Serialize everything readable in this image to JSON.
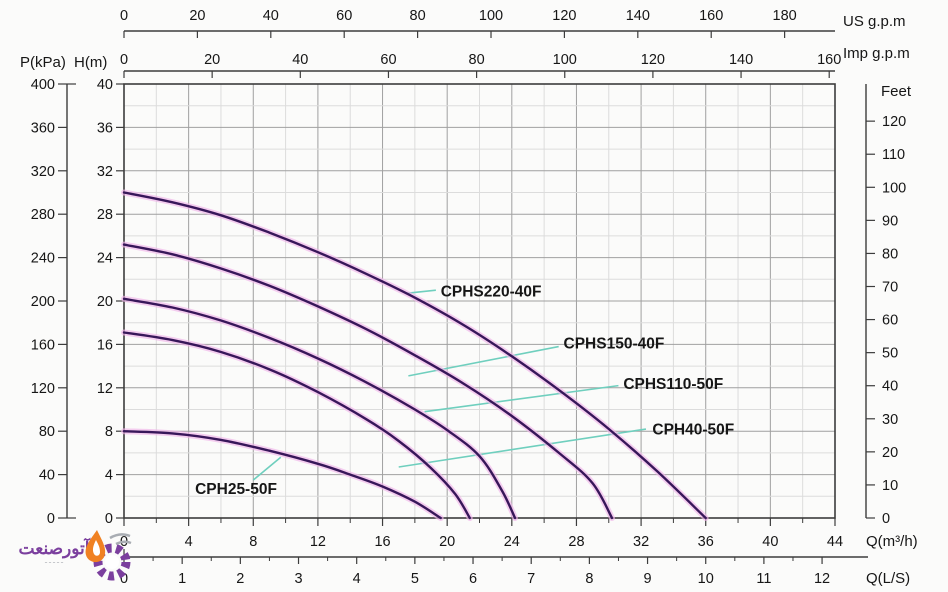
{
  "watermark": {
    "title": "آتورصنعت",
    "subtitle": "ـ ـ ـ ـ ـ",
    "icon": "flame-gear-logo",
    "title_color": "#7b3f9e",
    "flame_color": "#f08122",
    "gear_color": "#7b3f9e"
  },
  "chart_data": {
    "type": "line",
    "title": "",
    "description": "Pump head-capacity performance curves",
    "xlim_m3h": [
      0,
      44
    ],
    "ylim_m": [
      0,
      40
    ],
    "grid": "on",
    "colors": {
      "curve": "#38175a",
      "curve_glow": "#efb4ea",
      "leader": "#6fcfbe",
      "grid_minor": "#dcdcdc",
      "grid_major": "#a0a0a0",
      "frame": "#3c3c3c",
      "text": "#161616"
    },
    "axes": {
      "us": {
        "title": "US g.p.m",
        "ticks": [
          0,
          20,
          40,
          60,
          80,
          100,
          120,
          140,
          160,
          180
        ]
      },
      "imp": {
        "title": "Imp g.p.m",
        "ticks": [
          0,
          20,
          40,
          60,
          80,
          100,
          120,
          140,
          160
        ]
      },
      "p": {
        "title": "P(kPa)",
        "ticks": [
          400,
          360,
          320,
          280,
          240,
          200,
          160,
          120,
          80,
          40,
          0
        ]
      },
      "h": {
        "title": "H(m)",
        "ticks": [
          40,
          36,
          32,
          28,
          24,
          20,
          16,
          12,
          8,
          4,
          0
        ]
      },
      "feet": {
        "title": "Feet",
        "ticks": [
          120,
          110,
          100,
          90,
          80,
          70,
          60,
          50,
          40,
          30,
          20,
          10,
          0
        ]
      },
      "qm3": {
        "title": "Q(m³/h)",
        "ticks": [
          0,
          4,
          8,
          12,
          16,
          20,
          24,
          28,
          32,
          36,
          40,
          44
        ]
      },
      "qls": {
        "title": "Q(L/S)",
        "ticks": [
          0,
          1,
          2,
          3,
          4,
          5,
          6,
          7,
          8,
          9,
          10,
          11,
          12
        ]
      }
    },
    "series": [
      {
        "name": "CPHS220-40F",
        "points": [
          [
            0,
            30
          ],
          [
            3,
            29.1
          ],
          [
            6,
            27.9
          ],
          [
            9,
            26.3
          ],
          [
            12,
            24.5
          ],
          [
            15,
            22.5
          ],
          [
            18,
            20.3
          ],
          [
            21,
            17.8
          ],
          [
            24,
            14.9
          ],
          [
            27,
            11.7
          ],
          [
            30,
            8.2
          ],
          [
            33,
            4.3
          ],
          [
            36,
            0
          ]
        ],
        "leader": [
          [
            17.4,
            20.7
          ],
          [
            19.3,
            21.0
          ]
        ],
        "label_pos": [
          19.6,
          20.4
        ]
      },
      {
        "name": "CPHS150-40F",
        "points": [
          [
            0,
            25.2
          ],
          [
            3,
            24.3
          ],
          [
            6,
            23.0
          ],
          [
            9,
            21.4
          ],
          [
            12,
            19.5
          ],
          [
            15,
            17.4
          ],
          [
            18,
            15.0
          ],
          [
            21,
            12.4
          ],
          [
            24,
            9.4
          ],
          [
            27,
            5.9
          ],
          [
            29,
            3.2
          ],
          [
            30.2,
            0
          ]
        ],
        "leader": [
          [
            17.6,
            13.1
          ],
          [
            26.9,
            15.8
          ]
        ],
        "label_pos": [
          27.2,
          15.6
        ]
      },
      {
        "name": "CPHS110-50F",
        "points": [
          [
            0,
            20.2
          ],
          [
            3,
            19.4
          ],
          [
            6,
            18.2
          ],
          [
            9,
            16.6
          ],
          [
            12,
            14.7
          ],
          [
            15,
            12.5
          ],
          [
            18,
            10.0
          ],
          [
            20,
            8.1
          ],
          [
            22,
            5.7
          ],
          [
            23.4,
            2.5
          ],
          [
            24.2,
            0
          ]
        ],
        "leader": [
          [
            18.6,
            9.8
          ],
          [
            30.6,
            12.2
          ]
        ],
        "label_pos": [
          30.9,
          11.9
        ]
      },
      {
        "name": "CPH40-50F",
        "points": [
          [
            0,
            17.1
          ],
          [
            3,
            16.4
          ],
          [
            6,
            15.3
          ],
          [
            9,
            13.7
          ],
          [
            12,
            11.6
          ],
          [
            15,
            9.1
          ],
          [
            17,
            7.1
          ],
          [
            19,
            4.6
          ],
          [
            20.5,
            2.2
          ],
          [
            21.4,
            0
          ]
        ],
        "leader": [
          [
            17.0,
            4.7
          ],
          [
            32.3,
            8.2
          ]
        ],
        "label_pos": [
          32.7,
          7.7
        ]
      },
      {
        "name": "CPH25-50F",
        "points": [
          [
            0,
            8.0
          ],
          [
            3,
            7.8
          ],
          [
            6,
            7.2
          ],
          [
            9,
            6.2
          ],
          [
            12,
            5.0
          ],
          [
            14,
            4.0
          ],
          [
            16,
            2.9
          ],
          [
            18,
            1.5
          ],
          [
            19.6,
            0
          ]
        ],
        "leader": [
          [
            9.7,
            5.6
          ],
          [
            8.0,
            3.5
          ]
        ],
        "label_pos": [
          4.4,
          2.2
        ]
      }
    ]
  }
}
